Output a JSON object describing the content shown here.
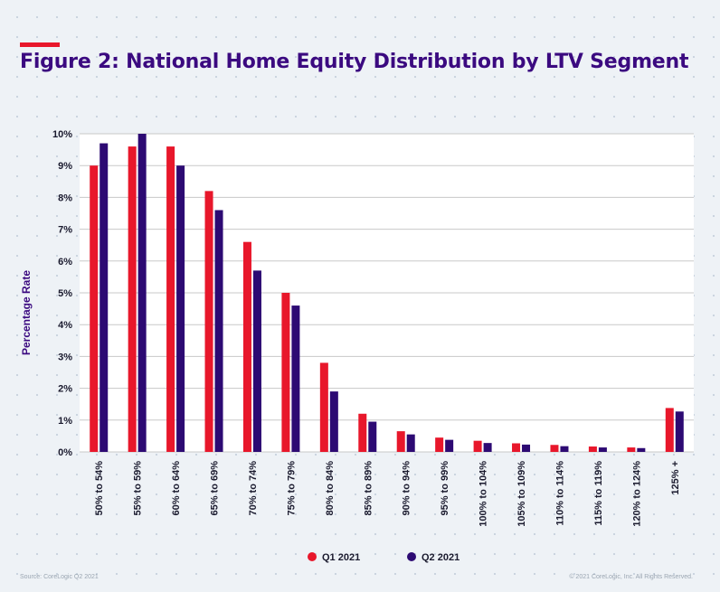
{
  "page": {
    "title": "Figure 2: National Home Equity Distribution by LTV Segment",
    "source": "Source: CoreLogic Q2 2021",
    "copyright": "© 2021 CoreLogic, Inc. All Rights Reserved."
  },
  "colors": {
    "accent": "#e8172b",
    "q1": "#e8172b",
    "q2": "#2d0a73",
    "title": "#3b0a80"
  },
  "chart_data": {
    "type": "bar",
    "title": "Figure 2: National Home Equity Distribution by LTV Segment",
    "xlabel": "",
    "ylabel": "Percentage Rate",
    "ylim": [
      0,
      10
    ],
    "yticks": [
      "0%",
      "1%",
      "2%",
      "3%",
      "4%",
      "5%",
      "6%",
      "7%",
      "8%",
      "9%",
      "10%"
    ],
    "grid": true,
    "legend": "bottom-center",
    "categories": [
      "50% to 54%",
      "55% to 59%",
      "60% to 64%",
      "65% to 69%",
      "70% to 74%",
      "75% to 79%",
      "80% to 84%",
      "85% to 89%",
      "90% to 94%",
      "95% to 99%",
      "100% to 104%",
      "105% to 109%",
      "110% to 114%",
      "115% to 119%",
      "120% to 124%",
      "125% +"
    ],
    "series": [
      {
        "name": "Q1 2021",
        "values": [
          9.0,
          9.6,
          9.6,
          8.2,
          6.6,
          5.0,
          2.8,
          1.2,
          0.65,
          0.45,
          0.35,
          0.27,
          0.22,
          0.17,
          0.14,
          1.38
        ]
      },
      {
        "name": "Q2 2021",
        "values": [
          9.7,
          10.0,
          9.0,
          7.6,
          5.7,
          4.6,
          1.9,
          0.95,
          0.55,
          0.38,
          0.28,
          0.23,
          0.18,
          0.14,
          0.12,
          1.27
        ]
      }
    ]
  }
}
